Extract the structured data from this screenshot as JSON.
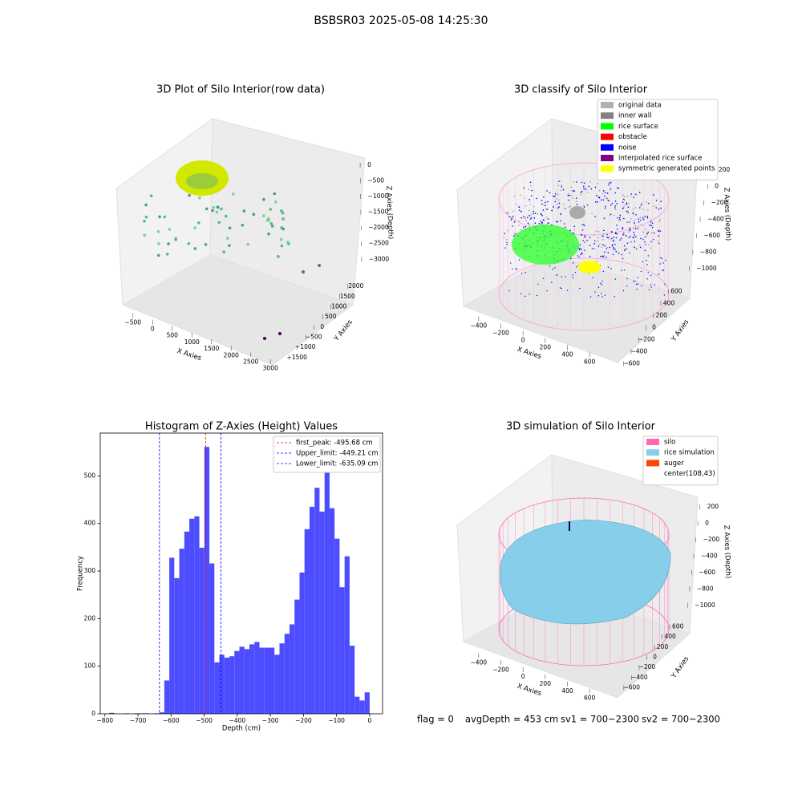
{
  "title": "BSBSR03 2025-05-08 14:25:30",
  "status": [
    "flag = 0",
    "avgDepth = 453 cm",
    "sv1 = 700~2300",
    "sv2 = 700~2300"
  ],
  "chart_data": [
    {
      "type": "scatter3d",
      "title": "3D Plot of Silo Interior(row data)",
      "x_label": "X Axies",
      "y_label": "Y Axies",
      "z_label": "Z Axies (Depth)",
      "xlim": [
        -700,
        3200
      ],
      "ylim": [
        -1700,
        2200
      ],
      "zlim": [
        -3300,
        200
      ],
      "xticks": [
        {
          "value": -500,
          "label": "−500"
        },
        0,
        500,
        1000,
        1500,
        2000,
        2500,
        3000
      ],
      "yticks": [
        {
          "value": -1500,
          "label": "−1500"
        },
        {
          "value": -1000,
          "label": "−1000"
        },
        {
          "value": -500,
          "label": "−500"
        },
        0,
        500,
        1000,
        1500,
        2000
      ],
      "zticks": [
        {
          "value": -3000,
          "label": "−3000"
        },
        {
          "value": -2500,
          "label": "−2500"
        },
        {
          "value": -2000,
          "label": "−2000"
        },
        {
          "value": -1500,
          "label": "−1500"
        },
        {
          "value": -1000,
          "label": "−1000"
        },
        {
          "value": -500,
          "label": "−500"
        },
        0
      ]
    },
    {
      "type": "scatter3d",
      "title": "3D classify of Silo Interior",
      "x_label": "X Axies",
      "y_label": "Y Axies",
      "z_label": "Z Axies (Depth)",
      "xlim": [
        -500,
        700
      ],
      "ylim": [
        -700,
        700
      ],
      "zlim": [
        -1100,
        250
      ],
      "xticks": [
        {
          "value": -400,
          "label": "−400"
        },
        {
          "value": -200,
          "label": "−200"
        },
        0,
        200,
        400,
        600
      ],
      "yticks": [
        {
          "value": -600,
          "label": "−600"
        },
        {
          "value": -400,
          "label": "−400"
        },
        {
          "value": -200,
          "label": "−200"
        },
        0,
        200,
        400,
        600
      ],
      "zticks": [
        {
          "value": -1000,
          "label": "−1000"
        },
        {
          "value": -800,
          "label": "−800"
        },
        {
          "value": -600,
          "label": "−600"
        },
        {
          "value": -400,
          "label": "−400"
        },
        {
          "value": -200,
          "label": "−200"
        },
        0,
        200
      ],
      "legend": "upper right",
      "legend_items": [
        {
          "name": "original data",
          "color": "#b0b0b0"
        },
        {
          "name": "inner wall",
          "color": "#808080"
        },
        {
          "name": "rice surface",
          "color": "#00ff00"
        },
        {
          "name": "obstacle",
          "color": "#ff0000"
        },
        {
          "name": "noise",
          "color": "#0000ff"
        },
        {
          "name": "interpolated rice surface",
          "color": "#800080"
        },
        {
          "name": "symmetric generated points",
          "color": "#ffff00"
        }
      ]
    },
    {
      "type": "histogram",
      "title": "Histogram of Z-Axies (Height) Values",
      "x_label": "Depth (cm)",
      "y_label": "Frequency",
      "color": "#4d4dff",
      "bins": [
        -787.0,
        -771.9,
        -756.7,
        -741.6,
        -726.5,
        -711.3,
        -696.2,
        -681.1,
        -665.9,
        -650.8,
        -635.7,
        -620.5,
        -605.4,
        -590.3,
        -575.2,
        -560.0,
        -544.9,
        -529.7,
        -514.6,
        -499.5,
        -484.3,
        -469.2,
        -454.1,
        -438.9,
        -423.8,
        -408.7,
        -393.5,
        -378.4,
        -363.2,
        -348.1,
        -333.0,
        -317.8,
        -302.7,
        -287.6,
        -272.4,
        -257.3,
        -242.2,
        -227.0,
        -211.9,
        -196.8,
        -181.6,
        -166.5,
        -151.4,
        -136.2,
        -121.1,
        -106.0,
        -90.8,
        -75.7,
        -60.6,
        -45.4,
        -30.3,
        -15.1,
        0.0
      ],
      "values": [
        2,
        0,
        0,
        1,
        0,
        1,
        1,
        1,
        0,
        1,
        3,
        70,
        328,
        285,
        347,
        383,
        410,
        415,
        349,
        561,
        316,
        108,
        124,
        118,
        121,
        132,
        141,
        136,
        146,
        151,
        139,
        139,
        139,
        124,
        148,
        168,
        188,
        240,
        297,
        388,
        435,
        475,
        425,
        510,
        432,
        368,
        266,
        331,
        143,
        36,
        28,
        45
      ],
      "xlim": [
        -814,
        39
      ],
      "ylim": [
        0,
        590
      ],
      "xticks": [
        {
          "value": -800,
          "label": "−800"
        },
        {
          "value": -700,
          "label": "−700"
        },
        {
          "value": -600,
          "label": "−600"
        },
        {
          "value": -500,
          "label": "−500"
        },
        {
          "value": -400,
          "label": "−400"
        },
        {
          "value": -300,
          "label": "−300"
        },
        {
          "value": -200,
          "label": "−200"
        },
        {
          "value": -100,
          "label": "−100"
        },
        0
      ],
      "yticks": [
        0,
        100,
        200,
        300,
        400,
        500
      ],
      "legend": "upper right",
      "vlines": [
        {
          "name": "first_peak: -495.68 cm",
          "value": -495.68,
          "color": "#ff0000"
        },
        {
          "name": "Upper_limit: -449.21 cm",
          "value": -449.21,
          "color": "#0000ff"
        },
        {
          "name": "Lower_limit: -635.09 cm",
          "value": -635.09,
          "color": "#0000ff"
        }
      ]
    },
    {
      "type": "surface3d",
      "title": "3D simulation of Silo Interior",
      "x_label": "X Axies",
      "y_label": "Y Axies",
      "z_label": "Z Axies (Depth)",
      "xlim": [
        -500,
        700
      ],
      "ylim": [
        -700,
        700
      ],
      "zlim": [
        -1100,
        300
      ],
      "xticks": [
        {
          "value": -400,
          "label": "−400"
        },
        {
          "value": -200,
          "label": "−200"
        },
        0,
        200,
        400,
        600
      ],
      "yticks": [
        {
          "value": -600,
          "label": "−600"
        },
        {
          "value": -400,
          "label": "−400"
        },
        {
          "value": -200,
          "label": "−200"
        },
        0,
        200,
        400,
        600
      ],
      "zticks": [
        {
          "value": -1000,
          "label": "−1000"
        },
        {
          "value": -800,
          "label": "−800"
        },
        {
          "value": -600,
          "label": "−600"
        },
        {
          "value": -400,
          "label": "−400"
        },
        {
          "value": -200,
          "label": "−200"
        },
        0,
        200
      ],
      "legend": "upper right",
      "legend_items": [
        {
          "name": "silo",
          "color": "#ff69b4"
        },
        {
          "name": "rice simulation",
          "color": "#87ceeb"
        },
        {
          "name": "auger",
          "color": "#ff4500"
        },
        {
          "name": "center(108,43)"
        }
      ]
    }
  ]
}
